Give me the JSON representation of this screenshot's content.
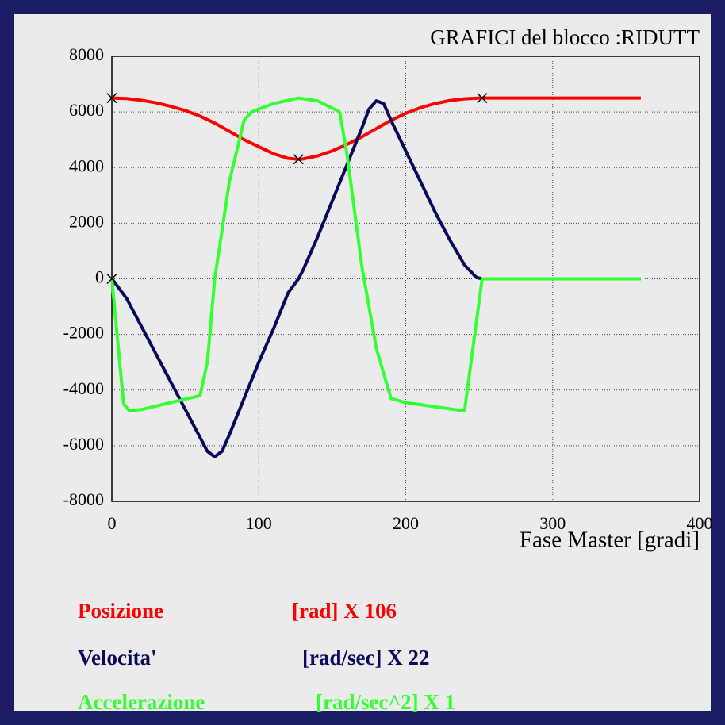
{
  "chart_data": {
    "type": "line",
    "title": "GRAFICI del blocco :RIDUTT",
    "xlabel": "Fase Master [gradi]",
    "xlim": [
      0,
      400
    ],
    "xticks": [
      0,
      100,
      200,
      300,
      400
    ],
    "ylim": [
      -8000,
      8000
    ],
    "yticks": [
      -8000,
      -6000,
      -4000,
      -2000,
      0,
      2000,
      4000,
      6000,
      8000
    ],
    "grid": true,
    "series": [
      {
        "name": "Posizione",
        "unit_label": "[rad] X 106",
        "color": "#ff0000",
        "x": [
          0,
          10,
          20,
          30,
          40,
          50,
          60,
          70,
          80,
          90,
          100,
          110,
          120,
          127,
          130,
          140,
          150,
          160,
          170,
          180,
          190,
          200,
          210,
          220,
          230,
          240,
          250,
          360
        ],
        "values": [
          6500,
          6480,
          6420,
          6330,
          6200,
          6050,
          5850,
          5600,
          5300,
          5000,
          4750,
          4500,
          4330,
          4300,
          4310,
          4420,
          4600,
          4830,
          5100,
          5400,
          5700,
          5950,
          6150,
          6300,
          6410,
          6470,
          6500,
          6500
        ]
      },
      {
        "name": "Velocita'",
        "unit_label": "[rad/sec] X 22",
        "color": "#0a0a5c",
        "x": [
          0,
          10,
          20,
          30,
          40,
          50,
          60,
          65,
          70,
          75,
          80,
          90,
          100,
          110,
          120,
          127,
          130,
          140,
          150,
          160,
          170,
          175,
          180,
          185,
          190,
          200,
          210,
          220,
          230,
          240,
          248,
          252,
          360
        ],
        "values": [
          0,
          -700,
          -1700,
          -2700,
          -3700,
          -4700,
          -5700,
          -6200,
          -6400,
          -6200,
          -5600,
          -4300,
          -3000,
          -1800,
          -500,
          0,
          300,
          1500,
          2800,
          4100,
          5400,
          6100,
          6400,
          6300,
          5700,
          4600,
          3500,
          2400,
          1400,
          500,
          50,
          0,
          0
        ]
      },
      {
        "name": "Accelerazione",
        "unit_label": "[rad/sec^2] X 1",
        "color": "#33ff33",
        "x": [
          0,
          8,
          12,
          20,
          60,
          65,
          70,
          80,
          90,
          95,
          110,
          127,
          140,
          155,
          160,
          170,
          180,
          190,
          200,
          240,
          252,
          360
        ],
        "values": [
          0,
          -4500,
          -4750,
          -4700,
          -4200,
          -3000,
          0,
          3500,
          5700,
          6000,
          6300,
          6500,
          6400,
          6000,
          4500,
          500,
          -2500,
          -4300,
          -4450,
          -4750,
          0,
          0
        ]
      }
    ],
    "markers": [
      {
        "x": 0,
        "y": 6500
      },
      {
        "x": 127,
        "y": 4300
      },
      {
        "x": 252,
        "y": 6500
      },
      {
        "x": 0,
        "y": 0
      }
    ]
  }
}
